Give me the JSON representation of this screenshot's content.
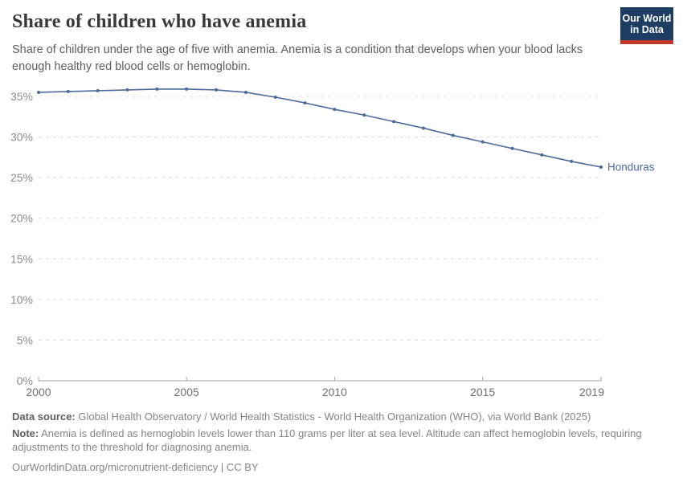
{
  "header": {
    "title": "Share of children who have anemia",
    "subtitle": "Share of children under the age of five with anemia. Anemia is a condition that develops when your blood lacks enough healthy red blood cells or hemoglobin.",
    "logo": {
      "line1": "Our World",
      "line2": "in Data"
    }
  },
  "chart_data": {
    "type": "line",
    "title": "Share of children who have anemia",
    "xlabel": "",
    "ylabel": "",
    "x": [
      2000,
      2001,
      2002,
      2003,
      2004,
      2005,
      2006,
      2007,
      2008,
      2009,
      2010,
      2011,
      2012,
      2013,
      2014,
      2015,
      2016,
      2017,
      2018,
      2019
    ],
    "series": [
      {
        "name": "Honduras",
        "color": "#4C6A9C",
        "values": [
          35.5,
          35.6,
          35.7,
          35.8,
          35.9,
          35.9,
          35.8,
          35.5,
          34.9,
          34.2,
          33.4,
          32.7,
          31.9,
          31.1,
          30.2,
          29.4,
          28.6,
          27.8,
          27.0,
          26.3
        ]
      }
    ],
    "xlim": [
      2000,
      2019
    ],
    "ylim": [
      0,
      35
    ],
    "x_ticks": [
      2000,
      2005,
      2010,
      2015,
      2019
    ],
    "y_ticks": [
      0,
      5,
      10,
      15,
      20,
      25,
      30,
      35
    ],
    "y_tick_suffix": "%",
    "grid": "horizontal-dashed",
    "legend_position": "end-of-line-label",
    "end_label": "Honduras"
  },
  "footer": {
    "data_source_label": "Data source:",
    "data_source": " Global Health Observatory / World Health Statistics - World Health Organization (WHO), via World Bank (2025)",
    "note_label": "Note:",
    "note": " Anemia is defined as hemoglobin levels lower than 110 grams per liter at sea level. Altitude can affect hemoglobin levels, requiring adjustments to the threshold for diagnosing anemia.",
    "citation": "OurWorldinData.org/micronutrient-deficiency | CC BY"
  },
  "colors": {
    "line": "#4C6A9C",
    "gridline": "#dcdcdc",
    "axis": "#a5a5a5",
    "y_tick_label": "#8c8c8c",
    "x_tick_label": "#6f6f6f",
    "title": "#383838",
    "subtitle": "#5e5e5e",
    "footer": "#858585",
    "logo_navy": "#1d3d63",
    "logo_red": "#c0392b"
  }
}
